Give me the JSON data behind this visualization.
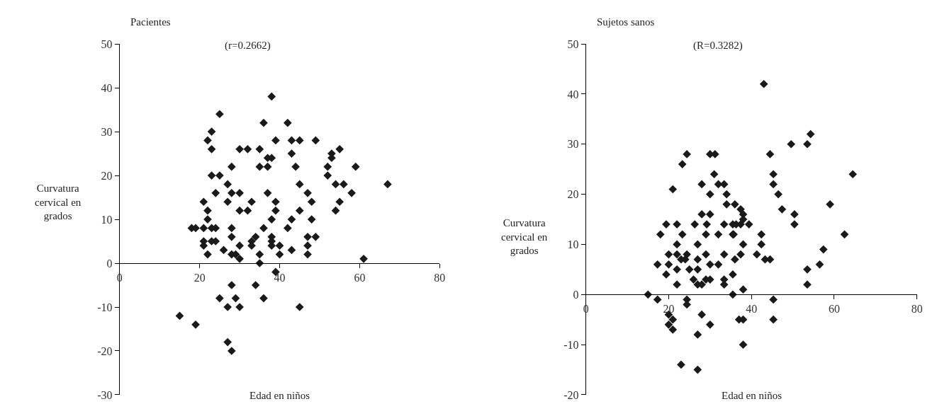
{
  "chart_data": [
    {
      "type": "scatter",
      "title": "Pacientes",
      "subtitle": "(r=0.2662)",
      "xlabel": "Edad en niños",
      "ylabel": "Curvatura cervical en grados",
      "xlim": [
        0,
        80
      ],
      "xticks": [
        0,
        20,
        40,
        60,
        80
      ],
      "ylim": [
        -30,
        50
      ],
      "yticks": [
        -30,
        -20,
        -10,
        0,
        10,
        20,
        30,
        40,
        50
      ],
      "grid": false,
      "marker": "diamond",
      "series": [
        {
          "color": "#1a1a1a",
          "x": [
            15,
            19,
            18,
            19,
            21,
            21,
            21,
            21,
            22,
            22,
            22,
            22,
            23,
            23,
            23,
            23,
            23,
            24,
            24,
            24,
            25,
            25,
            25,
            26,
            27,
            27,
            27,
            27,
            28,
            28,
            28,
            28,
            28,
            28,
            28,
            29,
            29,
            30,
            30,
            30,
            30,
            30,
            30,
            32,
            32,
            33,
            33,
            33,
            34,
            34,
            35,
            35,
            35,
            35,
            36,
            36,
            36,
            37,
            37,
            37,
            38,
            38,
            38,
            38,
            38,
            38,
            39,
            39,
            39,
            39,
            40,
            40,
            42,
            42,
            43,
            43,
            43,
            43,
            44,
            45,
            45,
            45,
            45,
            47,
            47,
            47,
            47,
            48,
            48,
            49,
            49,
            52,
            52,
            53,
            53,
            54,
            54,
            55,
            55,
            56,
            58,
            59,
            61,
            67
          ],
          "values": [
            -12,
            -14,
            8,
            8,
            14,
            8,
            5,
            4,
            2,
            12,
            10,
            28,
            26,
            30,
            20,
            8,
            5,
            5,
            8,
            16,
            34,
            20,
            -8,
            3,
            -10,
            -18,
            14,
            18,
            16,
            8,
            22,
            6,
            2,
            -5,
            -20,
            -8,
            2,
            1,
            12,
            16,
            26,
            -10,
            4,
            12,
            26,
            5,
            4,
            14,
            6,
            -5,
            2,
            0,
            22,
            26,
            8,
            -8,
            32,
            16,
            22,
            24,
            10,
            6,
            5,
            4,
            38,
            24,
            -2,
            28,
            14,
            12,
            4,
            2,
            8,
            32,
            10,
            3,
            25,
            28,
            22,
            28,
            18,
            12,
            -10,
            6,
            4,
            2,
            16,
            10,
            14,
            6,
            28,
            22,
            20,
            25,
            24,
            12,
            18,
            26,
            14,
            18,
            16,
            22,
            1,
            18
          ]
        }
      ]
    },
    {
      "type": "scatter",
      "title": "Sujetos sanos",
      "subtitle": "(R=0.3282)",
      "xlabel": "Edad en niños",
      "ylabel": "Curvatura cervical en grados",
      "xlim": [
        0,
        80
      ],
      "xticks": [
        0,
        20,
        40,
        60,
        80
      ],
      "ylim": [
        -20,
        50
      ],
      "yticks": [
        -20,
        -10,
        0,
        10,
        20,
        30,
        40,
        50
      ],
      "grid": false,
      "marker": "diamond",
      "series": [
        {
          "color": "#1a1a1a",
          "x": [
            15,
            17.3,
            17.3,
            18,
            19.4,
            19.4,
            20,
            20,
            20,
            20,
            21,
            21,
            21,
            22,
            22,
            22,
            22,
            22,
            23,
            23.3,
            23.3,
            23,
            24,
            24.4,
            24.4,
            24.4,
            24.4,
            25,
            26,
            26.3,
            27,
            27,
            27,
            27,
            27,
            27,
            28,
            28,
            28,
            28,
            29,
            29,
            29,
            29.2,
            30,
            30,
            30,
            30,
            30,
            30,
            31,
            31.2,
            32,
            32,
            32,
            33.4,
            33.4,
            33.4,
            33.4,
            33.4,
            34,
            34,
            35.5,
            35.5,
            35.5,
            35.5,
            35.7,
            36,
            36,
            36.3,
            37,
            37.4,
            37.4,
            37.4,
            38,
            38,
            38,
            38,
            38,
            38,
            39.4,
            41.3,
            42.4,
            42.4,
            43,
            43.3,
            44.5,
            44.5,
            45.3,
            45.3,
            45.3,
            45.3,
            46.5,
            47.4,
            49.6,
            50.4,
            50.4,
            53.5,
            53.5,
            53.5,
            54.3,
            56.5,
            57.4,
            59,
            62.5,
            64.5
          ],
          "values": [
            0,
            6,
            -1,
            12,
            14,
            4,
            8,
            6,
            -4,
            -6,
            21,
            -5,
            -7,
            14,
            10,
            8,
            5,
            2,
            -14,
            26,
            12,
            7,
            7,
            28,
            8,
            -1,
            -2,
            5,
            3,
            14,
            10,
            7,
            5,
            2,
            -8,
            -15,
            22,
            16,
            2,
            -4,
            12,
            8,
            3,
            14,
            28,
            20,
            16,
            6,
            3,
            -6,
            24,
            28,
            22,
            12,
            6,
            22,
            14,
            8,
            3,
            2,
            20,
            18,
            12,
            4,
            0,
            14,
            12,
            18,
            7,
            14,
            -5,
            17,
            14,
            8,
            16,
            15,
            10,
            1,
            -5,
            -10,
            14,
            8,
            12,
            10,
            42,
            7,
            28,
            7,
            24,
            22,
            -1,
            -5,
            20,
            17,
            30,
            16,
            14,
            30,
            5,
            2,
            32,
            6,
            9,
            18,
            12,
            24
          ]
        }
      ]
    }
  ]
}
